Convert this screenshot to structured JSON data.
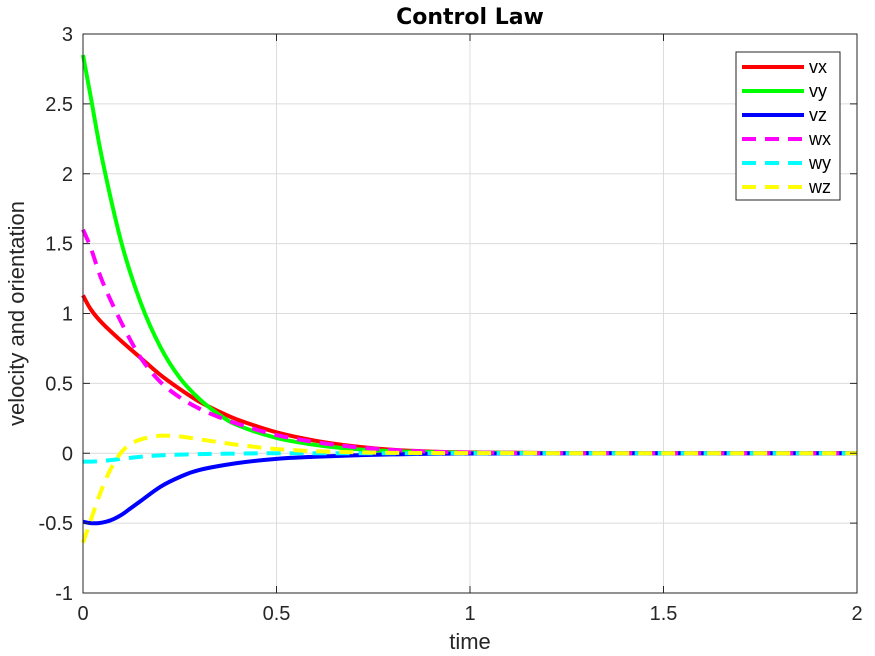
{
  "chart_data": {
    "type": "line",
    "title": "Control Law",
    "xlabel": "time",
    "ylabel": "velocity and orientation",
    "xlim": [
      0,
      2
    ],
    "ylim": [
      -1,
      3
    ],
    "xticks": [
      0,
      0.5,
      1,
      1.5,
      2
    ],
    "xtick_labels": [
      "0",
      "0.5",
      "1",
      "1.5",
      "2"
    ],
    "yticks": [
      -1,
      -0.5,
      0,
      0.5,
      1,
      1.5,
      2,
      2.5,
      3
    ],
    "ytick_labels": [
      "-1",
      "-0.5",
      "0",
      "0.5",
      "1",
      "1.5",
      "2",
      "2.5",
      "3"
    ],
    "grid": true,
    "legend_position": "top-right",
    "series": [
      {
        "name": "vx",
        "color": "#ff0000",
        "dashed": false,
        "x": [
          0,
          0.02,
          0.05,
          0.1,
          0.15,
          0.2,
          0.25,
          0.3,
          0.35,
          0.4,
          0.5,
          0.6,
          0.7,
          0.8,
          0.9,
          1.0,
          1.2,
          1.5,
          2.0
        ],
        "y": [
          1.13,
          1.03,
          0.93,
          0.8,
          0.68,
          0.56,
          0.46,
          0.37,
          0.3,
          0.24,
          0.15,
          0.09,
          0.05,
          0.025,
          0.012,
          0.006,
          0.002,
          0,
          0
        ]
      },
      {
        "name": "vy",
        "color": "#00ff00",
        "dashed": false,
        "x": [
          0,
          0.02,
          0.05,
          0.1,
          0.15,
          0.2,
          0.25,
          0.3,
          0.35,
          0.4,
          0.5,
          0.6,
          0.7,
          0.8,
          0.9,
          1.0,
          1.2,
          1.5,
          2.0
        ],
        "y": [
          2.85,
          2.55,
          2.1,
          1.5,
          1.07,
          0.76,
          0.54,
          0.39,
          0.28,
          0.2,
          0.11,
          0.06,
          0.03,
          0.015,
          0.008,
          0.004,
          0.001,
          0,
          0
        ]
      },
      {
        "name": "vz",
        "color": "#0000ff",
        "dashed": false,
        "x": [
          0,
          0.02,
          0.04,
          0.06,
          0.08,
          0.1,
          0.12,
          0.15,
          0.2,
          0.25,
          0.3,
          0.4,
          0.5,
          0.6,
          0.7,
          0.8,
          1.0,
          1.5,
          2.0
        ],
        "y": [
          -0.49,
          -0.5,
          -0.5,
          -0.49,
          -0.47,
          -0.44,
          -0.4,
          -0.34,
          -0.24,
          -0.17,
          -0.12,
          -0.07,
          -0.04,
          -0.025,
          -0.015,
          -0.008,
          -0.002,
          0,
          0
        ]
      },
      {
        "name": "wx",
        "color": "#ff00ff",
        "dashed": true,
        "x": [
          0,
          0.02,
          0.05,
          0.1,
          0.15,
          0.2,
          0.25,
          0.3,
          0.35,
          0.4,
          0.5,
          0.6,
          0.7,
          0.8,
          0.9,
          1.0,
          1.2,
          1.5,
          2.0
        ],
        "y": [
          1.6,
          1.47,
          1.23,
          0.93,
          0.68,
          0.51,
          0.4,
          0.32,
          0.26,
          0.21,
          0.13,
          0.08,
          0.045,
          0.023,
          0.011,
          0.005,
          0.001,
          0,
          0
        ]
      },
      {
        "name": "wy",
        "color": "#00ffff",
        "dashed": true,
        "x": [
          0,
          0.02,
          0.05,
          0.1,
          0.15,
          0.2,
          0.3,
          0.4,
          0.5,
          0.6,
          0.8,
          1.0,
          1.5,
          2.0
        ],
        "y": [
          -0.06,
          -0.06,
          -0.055,
          -0.04,
          -0.025,
          -0.015,
          -0.006,
          -0.002,
          0,
          0,
          0,
          0,
          0,
          0
        ]
      },
      {
        "name": "wz",
        "color": "#ffff00",
        "dashed": true,
        "x": [
          0,
          0.02,
          0.04,
          0.06,
          0.08,
          0.1,
          0.12,
          0.15,
          0.2,
          0.25,
          0.3,
          0.35,
          0.4,
          0.5,
          0.6,
          0.7,
          0.8,
          1.0,
          1.5,
          2.0
        ],
        "y": [
          -0.64,
          -0.48,
          -0.32,
          -0.18,
          -0.07,
          0.01,
          0.06,
          0.1,
          0.125,
          0.12,
          0.1,
          0.08,
          0.06,
          0.03,
          0.015,
          0.007,
          0.003,
          0.001,
          0,
          0
        ]
      }
    ]
  }
}
